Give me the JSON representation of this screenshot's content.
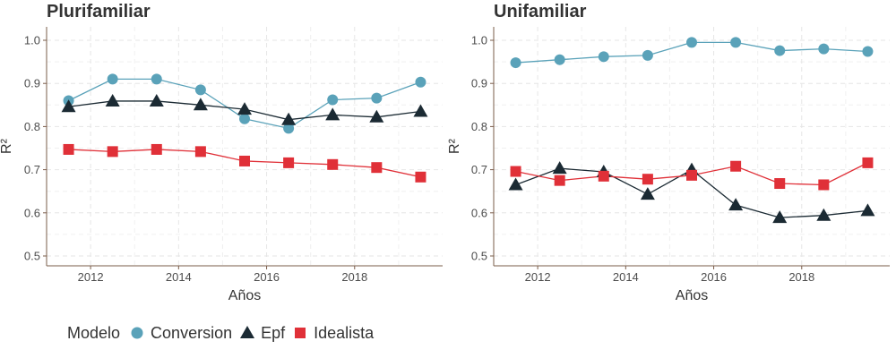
{
  "panels": [
    {
      "title": "Plurifamiliar"
    },
    {
      "title": "Unifamiliar"
    }
  ],
  "legend": {
    "title": "Modelo",
    "items": [
      {
        "label": "Conversion",
        "shape": "circle",
        "color": "#5aa2b9"
      },
      {
        "label": "Epf",
        "shape": "triangle",
        "color": "#1b2a33"
      },
      {
        "label": "Idealista",
        "shape": "square",
        "color": "#e03038"
      }
    ]
  },
  "chart_data": [
    {
      "type": "line",
      "title": "Plurifamiliar",
      "xlabel": "Años",
      "ylabel": "R²",
      "x": [
        2011.5,
        2012.5,
        2013.5,
        2014.5,
        2015.5,
        2016.5,
        2017.5,
        2018.5,
        2019.5
      ],
      "xlim": [
        2011,
        2020
      ],
      "ylim": [
        0.5,
        1.0
      ],
      "xticks": [
        2012,
        2014,
        2016,
        2018
      ],
      "yticks": [
        "0.5",
        "0.6",
        "0.7",
        "0.8",
        "0.9",
        "1.0"
      ],
      "grid": true,
      "legend_position": "bottom-left",
      "series": [
        {
          "name": "Conversion",
          "color": "#5aa2b9",
          "marker": "circle",
          "values": [
            0.86,
            0.91,
            0.91,
            0.885,
            0.818,
            0.796,
            0.862,
            0.866,
            0.903
          ]
        },
        {
          "name": "Epf",
          "color": "#1b2a33",
          "marker": "triangle",
          "values": [
            0.846,
            0.859,
            0.859,
            0.85,
            0.84,
            0.816,
            0.827,
            0.822,
            0.835
          ]
        },
        {
          "name": "Idealista",
          "color": "#e03038",
          "marker": "square",
          "values": [
            0.747,
            0.742,
            0.747,
            0.742,
            0.72,
            0.716,
            0.712,
            0.705,
            0.683
          ]
        }
      ]
    },
    {
      "type": "line",
      "title": "Unifamiliar",
      "xlabel": "Años",
      "ylabel": "R²",
      "x": [
        2011.5,
        2012.5,
        2013.5,
        2014.5,
        2015.5,
        2016.5,
        2017.5,
        2018.5,
        2019.5
      ],
      "xlim": [
        2011,
        2020
      ],
      "ylim": [
        0.5,
        1.0
      ],
      "xticks": [
        2012,
        2014,
        2016,
        2018
      ],
      "yticks": [
        "0.5",
        "0.6",
        "0.7",
        "0.8",
        "0.9",
        "1.0"
      ],
      "grid": true,
      "legend_position": "bottom-left",
      "series": [
        {
          "name": "Conversion",
          "color": "#5aa2b9",
          "marker": "circle",
          "values": [
            0.948,
            0.955,
            0.962,
            0.965,
            0.995,
            0.995,
            0.976,
            0.98,
            0.974
          ]
        },
        {
          "name": "Epf",
          "color": "#1b2a33",
          "marker": "triangle",
          "values": [
            0.665,
            0.703,
            0.695,
            0.643,
            0.7,
            0.618,
            0.589,
            0.594,
            0.605
          ]
        },
        {
          "name": "Idealista",
          "color": "#e03038",
          "marker": "square",
          "values": [
            0.696,
            0.675,
            0.685,
            0.678,
            0.687,
            0.708,
            0.668,
            0.665,
            0.716
          ]
        }
      ]
    }
  ]
}
